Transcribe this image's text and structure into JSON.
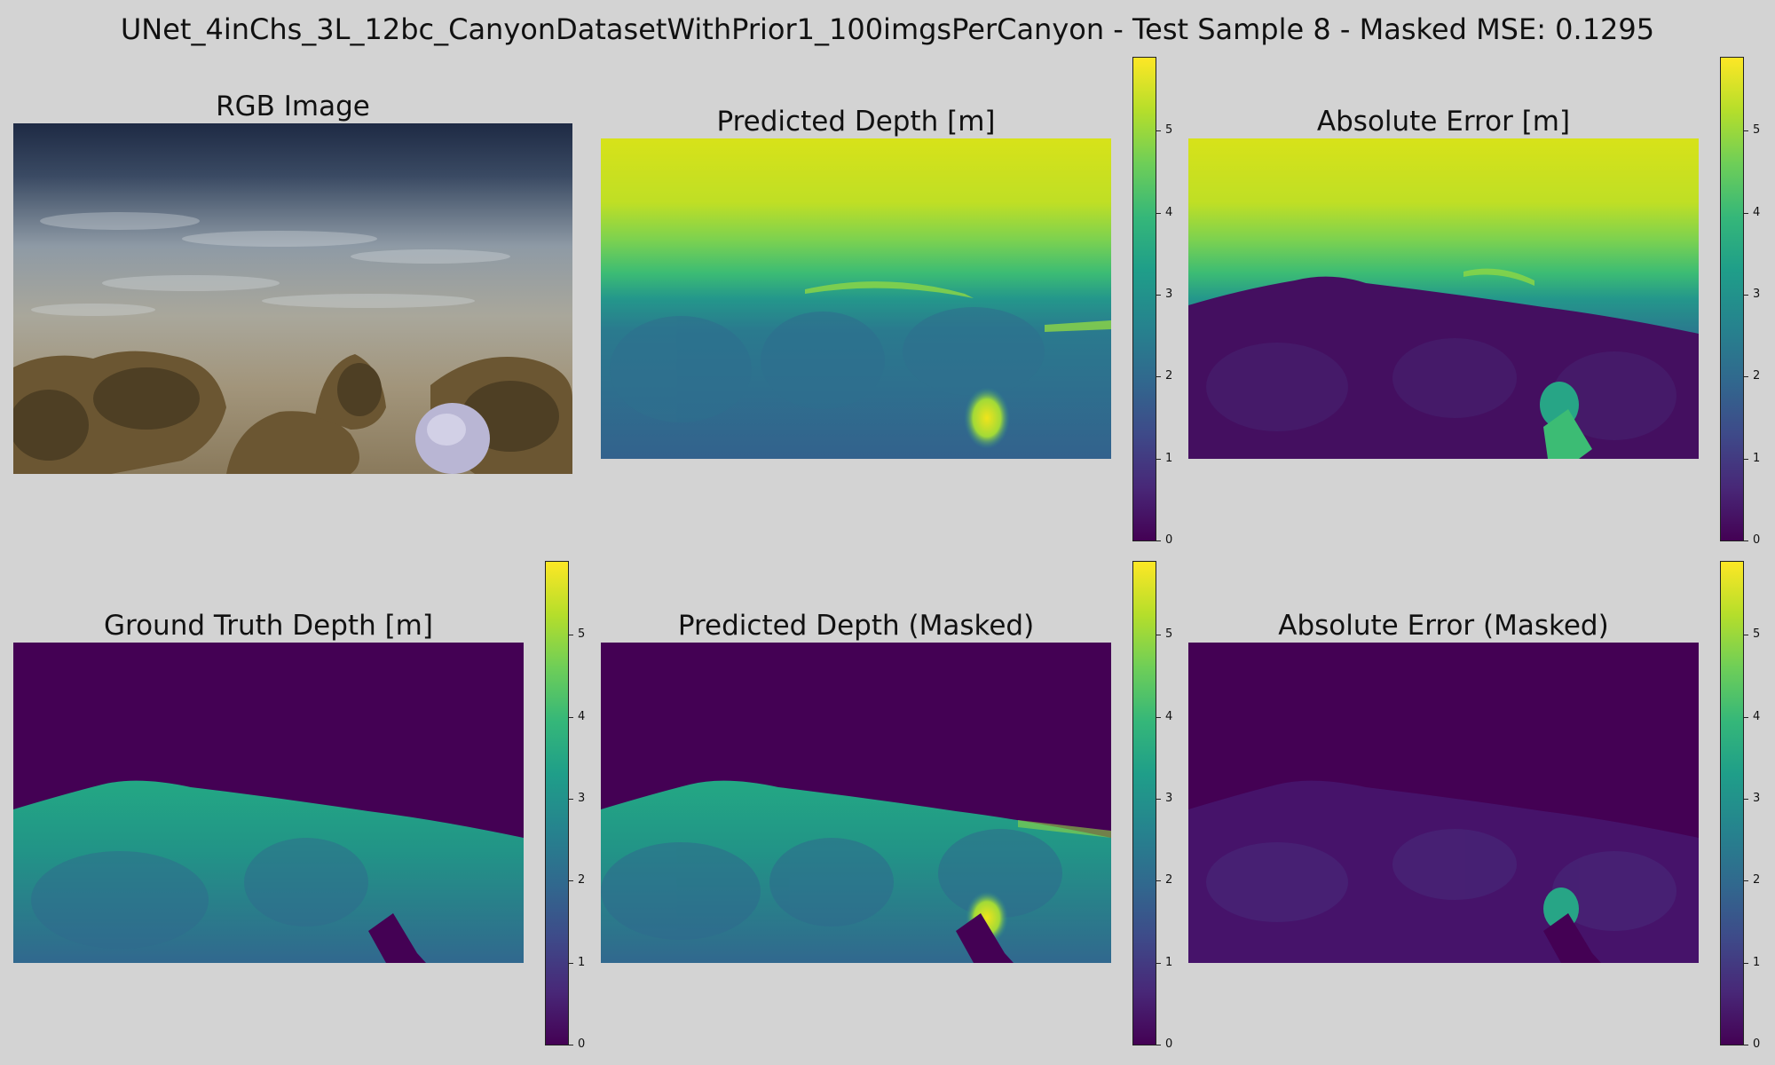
{
  "figure": {
    "suptitle": "UNet_4inChs_3L_12bc_CanyonDatasetWithPrior1_100imgsPerCanyon - Test Sample 8 - Masked MSE: 0.1295"
  },
  "panels": [
    {
      "title": "RGB Image",
      "kind": "rgb"
    },
    {
      "title": "Predicted Depth [m]",
      "kind": "pred",
      "colorbar": true
    },
    {
      "title": "Absolute Error [m]",
      "kind": "err",
      "colorbar": true
    },
    {
      "title": "Ground Truth Depth [m]",
      "kind": "gt",
      "colorbar": true
    },
    {
      "title": "Predicted Depth (Masked)",
      "kind": "pred_masked",
      "colorbar": true
    },
    {
      "title": "Absolute Error (Masked)",
      "kind": "err_masked",
      "colorbar": true
    }
  ],
  "colorbar": {
    "colormap": "viridis",
    "ticks": [
      "0",
      "1",
      "2",
      "3",
      "4",
      "5"
    ]
  }
}
